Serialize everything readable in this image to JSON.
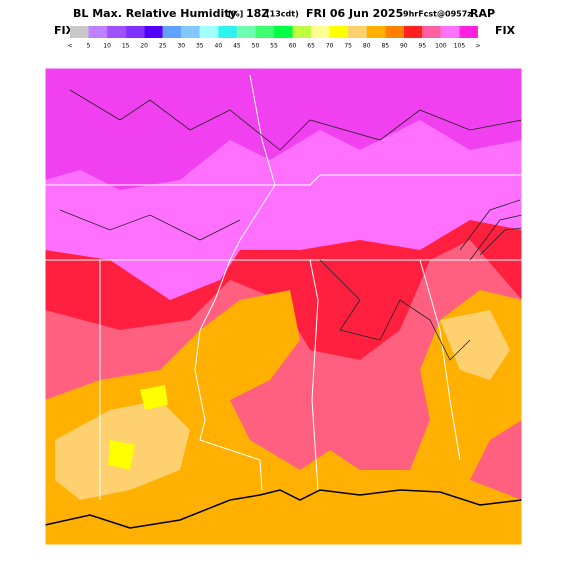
{
  "header": {
    "title": "BL Max. Relative Humidity",
    "units": "[%]",
    "valid": "18Z",
    "local": "(13cdt)",
    "date": "FRI 06 Jun 2025",
    "forecast": "9hrFcst@0957z",
    "model": "RAP"
  },
  "colorbar": {
    "left_label": "FIX",
    "right_label": "FIX",
    "colors": [
      "#c8c8c8",
      "#c080ff",
      "#a050ff",
      "#8030ff",
      "#5000ff",
      "#60a0ff",
      "#80c8ff",
      "#a0ffff",
      "#30f0f0",
      "#70ffb0",
      "#40ff70",
      "#00ff40",
      "#c0ff40",
      "#ffff90",
      "#ffff00",
      "#ffd070",
      "#ffb000",
      "#ff8000",
      "#ff2020",
      "#ff60a0",
      "#ff70ff",
      "#ff20e0"
    ],
    "labels": [
      "<",
      "5",
      "10",
      "15",
      "20",
      "25",
      "30",
      "35",
      "40",
      "45",
      "50",
      "55",
      "60",
      "65",
      "70",
      "75",
      "80",
      "85",
      "90",
      "95",
      "100",
      "105",
      ">"
    ]
  }
}
